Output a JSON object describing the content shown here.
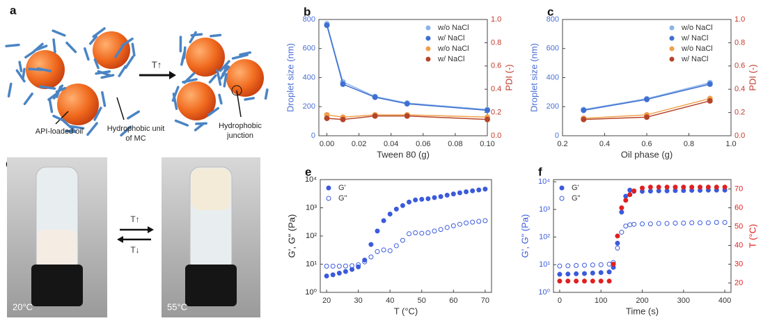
{
  "figure": {
    "a": {
      "label": "a",
      "arrow": "T↑",
      "oil": "API-loaded oil",
      "unit": "Hydrophobic unit of MC",
      "junction": "Hydrophobic junction"
    },
    "d": {
      "label": "d",
      "heat": "T↑",
      "cool": "T↓",
      "cold": "20°C",
      "hot": "55°C"
    }
  },
  "chart_data": [
    {
      "type": "line",
      "label": "b",
      "xlabel": "Tween 80 (g)",
      "ylabel": "Droplet size (nm)",
      "y2label": "PDI (-)",
      "axis_colors": {
        "y": "#4a6fd4",
        "y2": "#c0392b"
      },
      "legend": "upper right",
      "x": [
        0,
        0.01,
        0.03,
        0.05,
        0.1
      ],
      "xlim": [
        -0.005,
        0.1
      ],
      "xticks": [
        {
          "value": 0,
          "label": "0.00"
        },
        0.02,
        0.04,
        0.06,
        0.08,
        {
          "value": 0.1,
          "label": "0.10"
        }
      ],
      "ylim": [
        0,
        800
      ],
      "yticks": [
        0,
        200,
        400,
        600,
        800
      ],
      "y2lim": [
        0,
        1
      ],
      "y2ticks": [
        {
          "value": 0,
          "label": "0.0"
        },
        0.2,
        0.4,
        0.6,
        0.8,
        {
          "value": 1,
          "label": "1.0"
        }
      ],
      "series": [
        {
          "name": "w/o NaCl",
          "color": "#8ab4e8",
          "values": [
            770,
            370,
            270,
            225,
            180
          ]
        },
        {
          "name": "w/ NaCl",
          "color": "#3f6fd1",
          "values": [
            760,
            355,
            265,
            220,
            175
          ]
        },
        {
          "name": "w/o NaCl",
          "color": "#f0a04b",
          "axis": "y2",
          "values": [
            0.18,
            0.16,
            0.18,
            0.18,
            0.16
          ]
        },
        {
          "name": "w/ NaCl",
          "color": "#b5452a",
          "axis": "y2",
          "values": [
            0.15,
            0.14,
            0.17,
            0.17,
            0.14
          ]
        }
      ]
    },
    {
      "type": "line",
      "label": "c",
      "xlabel": "Oil phase (g)",
      "ylabel": "Droplet size (nm)",
      "y2label": "PDI (-)",
      "axis_colors": {
        "y": "#4a6fd4",
        "y2": "#c0392b"
      },
      "legend": "upper right",
      "x": [
        0.3,
        0.6,
        0.9
      ],
      "xlim": [
        0.2,
        1
      ],
      "xticks": [
        0.2,
        0.4,
        0.6,
        0.8,
        {
          "value": 1,
          "label": "1.0"
        }
      ],
      "ylim": [
        0,
        800
      ],
      "yticks": [
        0,
        200,
        400,
        600,
        800
      ],
      "y2lim": [
        0,
        1
      ],
      "y2ticks": [
        {
          "value": 0,
          "label": "0.0"
        },
        0.2,
        0.4,
        0.6,
        0.8,
        {
          "value": 1,
          "label": "1.0"
        }
      ],
      "series": [
        {
          "name": "w/o NaCl",
          "color": "#8ab4e8",
          "values": [
            180,
            255,
            365
          ]
        },
        {
          "name": "w/ NaCl",
          "color": "#3f6fd1",
          "values": [
            175,
            250,
            355
          ]
        },
        {
          "name": "w/o NaCl",
          "color": "#f0a04b",
          "axis": "y2",
          "values": [
            0.15,
            0.18,
            0.32
          ]
        },
        {
          "name": "w/ NaCl",
          "color": "#b5452a",
          "axis": "y2",
          "values": [
            0.14,
            0.16,
            0.3
          ]
        }
      ]
    },
    {
      "type": "scatter",
      "label": "e",
      "xlabel": "T (°C)",
      "ylabel": "G', G\" (Pa)",
      "axis_colors": {
        "y": "#222222"
      },
      "legend": "upper left",
      "ylog": true,
      "x": [
        20,
        22,
        24,
        26,
        28,
        30,
        32,
        34,
        36,
        38,
        40,
        42,
        44,
        46,
        48,
        50,
        52,
        54,
        56,
        58,
        60,
        62,
        64,
        66,
        68,
        70
      ],
      "xlim": [
        18,
        72
      ],
      "xticks": [
        20,
        30,
        40,
        50,
        60,
        70
      ],
      "ylim": [
        1,
        10000
      ],
      "yticks": [
        {
          "value": 1,
          "label": "10⁰"
        },
        {
          "value": 10,
          "label": "10¹"
        },
        {
          "value": 100,
          "label": "10²"
        },
        {
          "value": 1000,
          "label": "10³"
        },
        {
          "value": 10000,
          "label": "10⁴"
        }
      ],
      "series": [
        {
          "name": "G'",
          "color": "#3b5bdb",
          "marker": "filled",
          "values": [
            3.8,
            4.2,
            4.8,
            5.5,
            6.5,
            8,
            14,
            50,
            150,
            350,
            600,
            900,
            1200,
            1600,
            1900,
            2000,
            2100,
            2300,
            2500,
            2800,
            3100,
            3400,
            3700,
            4000,
            4300,
            4600
          ]
        },
        {
          "name": "G\"",
          "color": "#3b5bdb",
          "marker": "open",
          "values": [
            8.5,
            8.5,
            8.5,
            8.6,
            8.8,
            9.5,
            12,
            18,
            28,
            32,
            30,
            45,
            70,
            120,
            130,
            125,
            130,
            150,
            170,
            200,
            230,
            260,
            290,
            310,
            330,
            350
          ]
        }
      ]
    },
    {
      "type": "scatter",
      "label": "f",
      "xlabel": "Time (s)",
      "ylabel": "G', G\" (Pa)",
      "y2label": "T (°C)",
      "axis_colors": {
        "y": "#3b5bdb",
        "y2": "#e02020"
      },
      "legend": "upper left",
      "ylog": true,
      "x": [
        0,
        20,
        40,
        60,
        80,
        100,
        120,
        130,
        140,
        150,
        160,
        170,
        180,
        200,
        220,
        240,
        260,
        280,
        300,
        320,
        340,
        360,
        380,
        400
      ],
      "xlim": [
        -15,
        415
      ],
      "xticks": [
        0,
        100,
        200,
        300,
        400
      ],
      "ylim": [
        1,
        12000
      ],
      "yticks": [
        {
          "value": 1,
          "label": "10⁰"
        },
        {
          "value": 10,
          "label": "10¹"
        },
        {
          "value": 100,
          "label": "10²"
        },
        {
          "value": 1000,
          "label": "10³"
        },
        {
          "value": 10000,
          "label": "10⁴"
        }
      ],
      "y2lim": [
        15,
        75
      ],
      "y2ticks": [
        20,
        30,
        40,
        50,
        60,
        70
      ],
      "series": [
        {
          "name": "G'",
          "color": "#3b5bdb",
          "marker": "filled",
          "values": [
            4.5,
            4.6,
            4.7,
            4.8,
            5,
            5.2,
            5.5,
            8,
            60,
            800,
            3000,
            5000,
            4500,
            4500,
            4600,
            4700,
            4700,
            4800,
            4800,
            4900,
            4900,
            5000,
            5000,
            5000
          ]
        },
        {
          "name": "G\"",
          "color": "#3b5bdb",
          "marker": "open",
          "values": [
            9,
            9.2,
            9.4,
            9.6,
            9.8,
            10,
            10.5,
            12,
            40,
            150,
            250,
            280,
            290,
            300,
            300,
            310,
            310,
            320,
            320,
            330,
            330,
            330,
            340,
            340
          ]
        },
        {
          "color": "#e02020",
          "marker": "filled",
          "axis": "y2",
          "values": [
            21,
            21,
            21,
            21,
            21,
            21,
            21,
            30,
            45,
            60,
            64,
            67,
            69,
            70.5,
            71,
            71,
            71,
            71,
            71,
            71,
            71,
            71,
            71,
            71
          ]
        }
      ]
    }
  ]
}
